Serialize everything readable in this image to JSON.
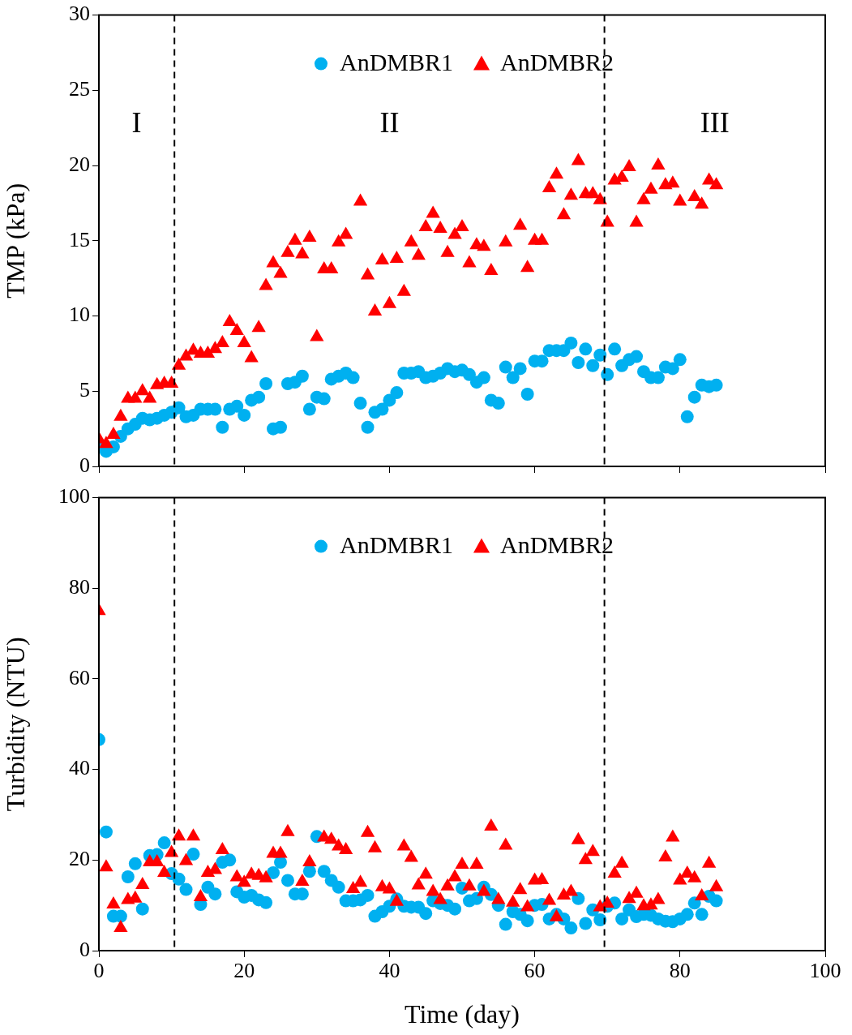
{
  "chart_data": [
    {
      "type": "scatter",
      "ylabel": "TMP (kPa)",
      "xlim": [
        0,
        100
      ],
      "xticks": [
        0,
        20,
        40,
        60,
        80,
        100
      ],
      "ylim": [
        0,
        30
      ],
      "yticks": [
        0,
        5,
        10,
        15,
        20,
        25,
        30
      ],
      "tick_labels": "y",
      "legend": "top",
      "grid": false,
      "ref_lines": [
        {
          "axis": "x",
          "value": 10.4,
          "line_style": "dashed",
          "color": "#000000"
        },
        {
          "axis": "x",
          "value": 69.6,
          "line_style": "dashed",
          "color": "#000000"
        }
      ],
      "annotations": [
        "I",
        "II",
        "III"
      ],
      "series": [
        {
          "name": "AnDMBR1",
          "color": "#00b0f0",
          "marker": "circle",
          "x": [
            0,
            1,
            2,
            3,
            4,
            5,
            6,
            7,
            8,
            9,
            10,
            11,
            12,
            13,
            14,
            15,
            16,
            17,
            18,
            19,
            20,
            21,
            22,
            23,
            24,
            25,
            26,
            27,
            28,
            29,
            30,
            31,
            32,
            33,
            34,
            35,
            36,
            37,
            38,
            39,
            40,
            41,
            42,
            43,
            44,
            45,
            46,
            47,
            48,
            49,
            50,
            51,
            52,
            53,
            54,
            55,
            56,
            57,
            58,
            59,
            60,
            61,
            62,
            63,
            64,
            65,
            66,
            67,
            68,
            69,
            70,
            71,
            72,
            73,
            74,
            75,
            76,
            77,
            78,
            79,
            80,
            81,
            82,
            83,
            84,
            85
          ],
          "values": [
            1.3,
            1.0,
            1.3,
            2.0,
            2.5,
            2.8,
            3.2,
            3.1,
            3.2,
            3.4,
            3.6,
            3.9,
            3.3,
            3.4,
            3.8,
            3.8,
            3.8,
            2.6,
            3.8,
            4.0,
            3.4,
            4.4,
            4.6,
            5.5,
            2.5,
            2.6,
            5.5,
            5.6,
            6.0,
            3.8,
            4.6,
            4.5,
            5.8,
            6.0,
            6.2,
            5.9,
            4.2,
            2.6,
            3.6,
            3.8,
            4.4,
            4.9,
            6.2,
            6.2,
            6.3,
            5.9,
            6.0,
            6.2,
            6.5,
            6.3,
            6.4,
            6.1,
            5.6,
            5.9,
            4.4,
            4.2,
            6.6,
            5.9,
            6.5,
            4.8,
            7.0,
            7.0,
            7.7,
            7.7,
            7.7,
            8.2,
            6.9,
            7.8,
            6.7,
            7.4,
            6.1,
            7.8,
            6.7,
            7.1,
            7.3,
            6.3,
            5.9,
            5.9,
            6.6,
            6.5,
            7.1,
            3.3,
            4.6,
            5.4,
            5.3,
            5.4
          ]
        },
        {
          "name": "AnDMBR2",
          "color": "#ff0000",
          "marker": "triangle",
          "x": [
            0,
            1,
            2,
            3,
            4,
            5,
            6,
            7,
            8,
            9,
            10,
            11,
            12,
            13,
            14,
            15,
            16,
            17,
            18,
            19,
            20,
            21,
            22,
            23,
            24,
            25,
            26,
            27,
            28,
            29,
            30,
            31,
            32,
            33,
            34,
            36,
            37,
            38,
            39,
            40,
            41,
            42,
            43,
            44,
            45,
            46,
            47,
            48,
            49,
            50,
            51,
            52,
            53,
            54,
            56,
            58,
            59,
            60,
            61,
            62,
            63,
            64,
            65,
            66,
            67,
            68,
            69,
            70,
            71,
            72,
            73,
            74,
            75,
            76,
            77,
            78,
            79,
            80,
            82,
            83,
            84,
            85
          ],
          "values": [
            1.8,
            1.5,
            2.1,
            3.3,
            4.5,
            4.5,
            5.0,
            4.5,
            5.4,
            5.5,
            5.5,
            6.7,
            7.3,
            7.7,
            7.5,
            7.5,
            7.8,
            8.2,
            9.6,
            9.0,
            8.2,
            7.2,
            9.2,
            12.0,
            13.5,
            12.8,
            14.2,
            15.0,
            14.1,
            15.2,
            8.6,
            13.1,
            13.1,
            14.9,
            15.4,
            17.6,
            12.7,
            10.3,
            13.7,
            10.8,
            13.8,
            11.6,
            14.9,
            14.0,
            15.9,
            16.8,
            15.8,
            14.2,
            15.4,
            15.9,
            13.5,
            14.7,
            14.6,
            13.0,
            14.9,
            16.0,
            13.2,
            15.0,
            15.0,
            18.5,
            19.4,
            16.7,
            18.0,
            20.3,
            18.1,
            18.1,
            17.7,
            16.2,
            19.0,
            19.2,
            19.9,
            16.2,
            17.7,
            18.4,
            20.0,
            18.7,
            18.8,
            17.6,
            17.9,
            17.4,
            19.0,
            18.7
          ]
        }
      ]
    },
    {
      "type": "scatter",
      "xlabel": "Time (day)",
      "ylabel": "Turbidity (NTU)",
      "xlim": [
        0,
        100
      ],
      "xticks": [
        0,
        20,
        40,
        60,
        80,
        100
      ],
      "ylim": [
        0,
        100
      ],
      "yticks": [
        0,
        20,
        40,
        60,
        80,
        100
      ],
      "legend": "top",
      "grid": false,
      "ref_lines": [
        {
          "axis": "x",
          "value": 10.4,
          "line_style": "dashed",
          "color": "#000000"
        },
        {
          "axis": "x",
          "value": 69.6,
          "line_style": "dashed",
          "color": "#000000"
        }
      ],
      "series": [
        {
          "name": "AnDMBR1",
          "color": "#00b0f0",
          "marker": "circle",
          "x": [
            0,
            1,
            2,
            3,
            4,
            5,
            6,
            7,
            8,
            9,
            10,
            11,
            12,
            13,
            14,
            15,
            16,
            17,
            18,
            19,
            20,
            21,
            22,
            23,
            24,
            25,
            26,
            27,
            28,
            29,
            30,
            31,
            32,
            33,
            34,
            35,
            36,
            37,
            38,
            39,
            40,
            41,
            42,
            43,
            44,
            45,
            46,
            47,
            48,
            49,
            50,
            51,
            52,
            53,
            54,
            55,
            56,
            57,
            58,
            59,
            60,
            61,
            62,
            63,
            64,
            65,
            66,
            67,
            68,
            69,
            70,
            71,
            72,
            73,
            74,
            75,
            76,
            77,
            78,
            79,
            80,
            81,
            82,
            83,
            84,
            85
          ],
          "values": [
            46.6,
            26.2,
            7.6,
            7.6,
            16.3,
            19.2,
            9.2,
            21.0,
            21.2,
            23.8,
            17.0,
            15.8,
            13.5,
            21.3,
            10.2,
            14.0,
            12.5,
            19.5,
            20.0,
            13.0,
            11.8,
            12.2,
            11.2,
            10.6,
            17.2,
            19.5,
            15.5,
            12.5,
            12.5,
            17.5,
            25.2,
            17.5,
            15.5,
            14.0,
            11.0,
            11.0,
            11.2,
            12.2,
            7.6,
            8.6,
            9.8,
            11.4,
            9.8,
            9.6,
            9.6,
            8.2,
            11.0,
            10.4,
            10.0,
            9.2,
            13.8,
            11.0,
            11.5,
            14.0,
            12.4,
            10.0,
            5.8,
            8.6,
            8.0,
            6.6,
            10.0,
            10.2,
            7.0,
            8.0,
            7.0,
            5.0,
            11.5,
            6.0,
            9.0,
            6.8,
            9.8,
            10.5,
            7.0,
            9.0,
            7.5,
            8.0,
            7.8,
            7.0,
            6.5,
            6.4,
            7.0,
            8.0,
            10.5,
            8.0,
            12.0,
            11.0
          ]
        },
        {
          "name": "AnDMBR2",
          "color": "#ff0000",
          "marker": "triangle",
          "x": [
            0,
            1,
            2,
            3,
            4,
            5,
            6,
            7,
            8,
            9,
            10,
            11,
            12,
            13,
            14,
            15,
            16,
            17,
            19,
            20,
            21,
            22,
            23,
            24,
            25,
            26,
            28,
            29,
            31,
            32,
            33,
            34,
            35,
            36,
            37,
            38,
            39,
            40,
            41,
            42,
            43,
            44,
            45,
            46,
            47,
            48,
            49,
            50,
            51,
            52,
            53,
            54,
            55,
            56,
            57,
            58,
            59,
            60,
            61,
            62,
            63,
            64,
            65,
            66,
            67,
            68,
            69,
            70,
            71,
            72,
            73,
            74,
            75,
            76,
            77,
            78,
            79,
            80,
            81,
            82,
            83,
            84,
            85
          ],
          "values": [
            75.0,
            18.4,
            10.2,
            5.0,
            11.2,
            11.5,
            14.5,
            19.5,
            19.5,
            17.2,
            21.6,
            25.2,
            19.8,
            25.2,
            11.8,
            17.2,
            17.8,
            22.2,
            16.2,
            15.0,
            16.8,
            16.5,
            16.0,
            21.4,
            21.4,
            26.2,
            15.2,
            19.5,
            25.0,
            24.5,
            23.0,
            22.2,
            13.6,
            15.0,
            26.0,
            22.6,
            14.0,
            13.5,
            10.8,
            23.0,
            20.5,
            14.4,
            16.8,
            13.0,
            11.2,
            14.2,
            16.2,
            19.0,
            14.2,
            19.0,
            13.0,
            27.4,
            11.2,
            23.2,
            10.6,
            13.4,
            9.6,
            15.5,
            15.6,
            11.0,
            7.4,
            12.2,
            13.0,
            24.4,
            20.0,
            21.8,
            9.6,
            10.4,
            17.0,
            19.2,
            11.4,
            12.6,
            9.8,
            10.0,
            11.2,
            20.6,
            25.0,
            15.5,
            17.0,
            16.0,
            12.0,
            19.2,
            14.0
          ]
        }
      ]
    }
  ]
}
